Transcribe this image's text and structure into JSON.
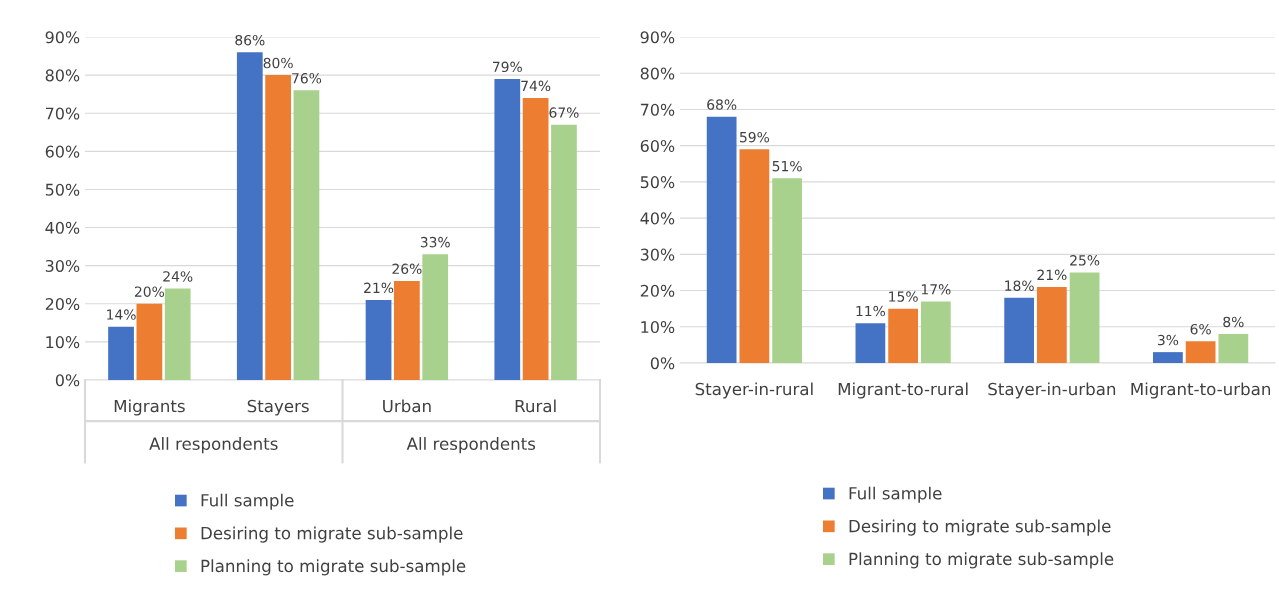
{
  "chart_data": [
    {
      "type": "bar",
      "categories": [
        "Migrants",
        "Stayers",
        "Urban",
        "Rural"
      ],
      "annotations": [
        "All respondents",
        "All respondents"
      ],
      "series": [
        {
          "name": "Full sample",
          "color": "#4472c4",
          "values": [
            14,
            86,
            21,
            79
          ],
          "value_labels": [
            "14%",
            "86%",
            "21%",
            "79%"
          ]
        },
        {
          "name": "Desiring to migrate sub-sample",
          "color": "#ed7d31",
          "values": [
            20,
            80,
            26,
            74
          ],
          "value_labels": [
            "20%",
            "80%",
            "26%",
            "74%"
          ]
        },
        {
          "name": "Planning to migrate sub-sample",
          "color": "#a9d18e",
          "values": [
            24,
            76,
            33,
            67
          ],
          "value_labels": [
            "24%",
            "76%",
            "33%",
            "67%"
          ]
        }
      ],
      "ylim": [
        0,
        90
      ],
      "yticks": [
        {
          "value": 0,
          "label": "0%"
        },
        {
          "value": 10,
          "label": "10%"
        },
        {
          "value": 20,
          "label": "20%"
        },
        {
          "value": 30,
          "label": "30%"
        },
        {
          "value": 40,
          "label": "40%"
        },
        {
          "value": 50,
          "label": "50%"
        },
        {
          "value": 60,
          "label": "60%"
        },
        {
          "value": 70,
          "label": "70%"
        },
        {
          "value": 80,
          "label": "80%"
        },
        {
          "value": 90,
          "label": "90%"
        }
      ],
      "grid": "y",
      "legend": "bottom"
    },
    {
      "type": "bar",
      "categories": [
        "Stayer-in-rural",
        "Migrant-to-rural",
        "Stayer-in-urban",
        "Migrant-to-urban"
      ],
      "series": [
        {
          "name": "Full sample",
          "color": "#4472c4",
          "values": [
            68,
            11,
            18,
            3
          ],
          "value_labels": [
            "68%",
            "11%",
            "18%",
            "3%"
          ]
        },
        {
          "name": "Desiring to migrate sub-sample",
          "color": "#ed7d31",
          "values": [
            59,
            15,
            21,
            6
          ],
          "value_labels": [
            "59%",
            "15%",
            "21%",
            "6%"
          ]
        },
        {
          "name": "Planning to migrate sub-sample",
          "color": "#a9d18e",
          "values": [
            51,
            17,
            25,
            8
          ],
          "value_labels": [
            "51%",
            "17%",
            "25%",
            "8%"
          ]
        }
      ],
      "ylim": [
        0,
        90
      ],
      "yticks": [
        {
          "value": 0,
          "label": "0%"
        },
        {
          "value": 10,
          "label": "10%"
        },
        {
          "value": 20,
          "label": "20%"
        },
        {
          "value": 30,
          "label": "30%"
        },
        {
          "value": 40,
          "label": "40%"
        },
        {
          "value": 50,
          "label": "50%"
        },
        {
          "value": 60,
          "label": "60%"
        },
        {
          "value": 70,
          "label": "70%"
        },
        {
          "value": 80,
          "label": "80%"
        },
        {
          "value": 90,
          "label": "90%"
        }
      ],
      "grid": "y",
      "legend": "bottom"
    }
  ]
}
